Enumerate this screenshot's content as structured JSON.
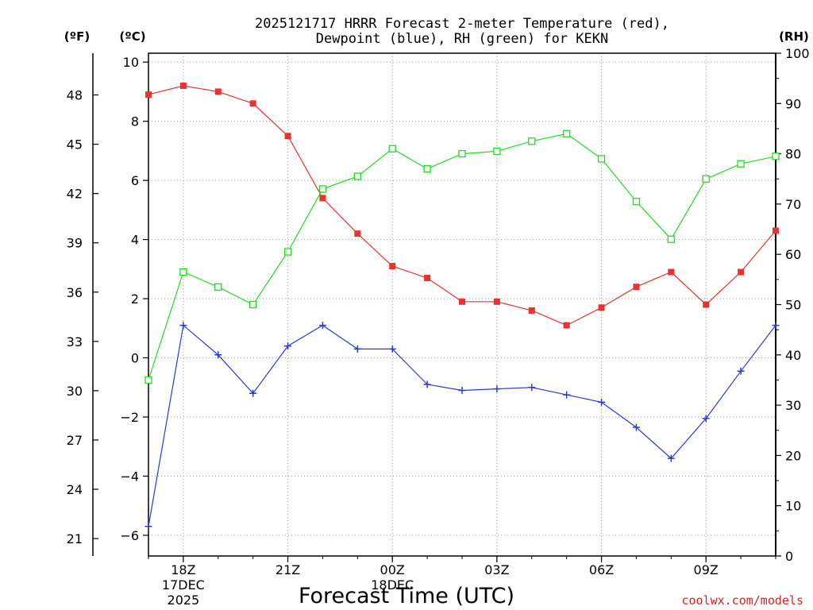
{
  "chart_data": {
    "type": "line",
    "title_line1": "2025121717 HRRR Forecast 2-meter Temperature (red),",
    "title_line2": "Dewpoint (blue), RH (green) for KEKN",
    "xlabel": "Forecast Time (UTC)",
    "credit": "coolwx.com/models",
    "units": {
      "fahrenheit": "(ºF)",
      "celsius": "(ºC)",
      "rh": "(RH)"
    },
    "x_hours": [
      17,
      18,
      19,
      20,
      21,
      22,
      23,
      24,
      25,
      26,
      27,
      28,
      29,
      30,
      31,
      32,
      33,
      34,
      35
    ],
    "x_ticks": [
      {
        "hour": 18,
        "label": "18Z",
        "sub1": "17DEC",
        "sub2": "2025"
      },
      {
        "hour": 21,
        "label": "21Z"
      },
      {
        "hour": 24,
        "label": "00Z",
        "sub1": "18DEC"
      },
      {
        "hour": 27,
        "label": "03Z"
      },
      {
        "hour": 30,
        "label": "06Z"
      },
      {
        "hour": 33,
        "label": "09Z"
      }
    ],
    "xlim": [
      17,
      35
    ],
    "celsius_ticks": [
      "10",
      "8",
      "6",
      "4",
      "2",
      "0",
      "−2",
      "−4",
      "−6"
    ],
    "celsius_tick_values": [
      10,
      8,
      6,
      4,
      2,
      0,
      -2,
      -4,
      -6
    ],
    "fahrenheit_ticks": [
      "48",
      "45",
      "42",
      "39",
      "36",
      "33",
      "30",
      "27",
      "24",
      "21"
    ],
    "fahrenheit_tick_values": [
      48,
      45,
      42,
      39,
      36,
      33,
      30,
      27,
      24,
      21
    ],
    "rh_ticks": [
      "100",
      "90",
      "80",
      "70",
      "60",
      "50",
      "40",
      "30",
      "20",
      "10",
      "0"
    ],
    "rh_tick_values": [
      100,
      90,
      80,
      70,
      60,
      50,
      40,
      30,
      20,
      10,
      0
    ],
    "celsius_range": [
      -6.7,
      10.3
    ],
    "rh_range": [
      0,
      100
    ],
    "series": [
      {
        "name": "Temperature",
        "color": "#e83232",
        "axis": "celsius",
        "marker": "filled-square",
        "values": [
          8.9,
          9.2,
          9.0,
          8.6,
          7.5,
          5.4,
          4.2,
          3.1,
          2.7,
          1.9,
          1.9,
          1.6,
          1.1,
          1.7,
          2.4,
          2.9,
          1.8,
          2.9,
          4.3
        ]
      },
      {
        "name": "Dewpoint",
        "color": "#2a3ad8",
        "axis": "celsius",
        "marker": "plus",
        "values": [
          -5.7,
          1.1,
          0.1,
          -1.2,
          0.4,
          1.1,
          0.3,
          0.3,
          -0.9,
          -1.1,
          -1.05,
          -1.0,
          -1.25,
          -1.5,
          -2.35,
          -3.4,
          -2.05,
          -0.45,
          1.1
        ]
      },
      {
        "name": "RH",
        "color": "#22dd22",
        "axis": "rh",
        "marker": "open-square",
        "values": [
          35,
          56.5,
          53.5,
          50,
          60.5,
          73,
          75.5,
          81,
          77,
          80,
          80.5,
          82.5,
          84,
          79,
          70.5,
          63,
          75,
          78,
          79.5
        ]
      }
    ]
  }
}
